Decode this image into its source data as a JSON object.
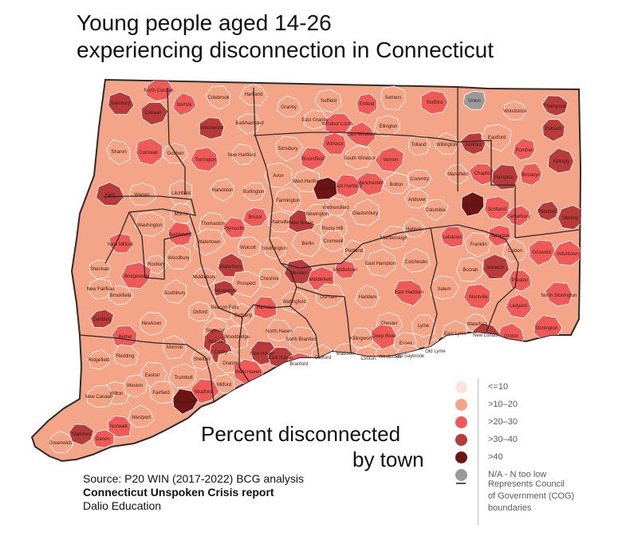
{
  "title": {
    "line1": "Young people aged 14-26",
    "line2": "experiencing disconnection in Connecticut"
  },
  "subtitle": {
    "line1": "Percent disconnected",
    "line2": "by town"
  },
  "source": {
    "line1": "Source: P20 WIN (2017-2022) BCG analysis",
    "line2": "Connecticut Unspoken Crisis report",
    "line3": "Dalio Education"
  },
  "colors": {
    "c1": "#fbe3dd",
    "c2": "#f4a487",
    "c3": "#ef5a58",
    "c4": "#b83a3a",
    "c5": "#6e1417",
    "na": "#9a9a9a",
    "border": "#3b3b3b",
    "town_line": "#ffffff"
  },
  "legend": [
    {
      "label": "<=10",
      "color": "#fbe3dd"
    },
    {
      "label": ">10–20",
      "color": "#f4a487"
    },
    {
      "label": ">20–30",
      "color": "#ef5a58"
    },
    {
      "label": ">30–40",
      "color": "#b83a3a"
    },
    {
      "label": ">40",
      "color": "#6e1417"
    },
    {
      "label": "N/A - N too low",
      "color": "#9a9a9a"
    },
    {
      "label": "Represents Council of Government (COG) boundaries",
      "line1": "Represents Council",
      "line2": "of Government (COG)",
      "line3": "boundaries"
    }
  ],
  "towns": [
    {
      "name": "Salisbury",
      "cat": "c4"
    },
    {
      "name": "North Canaan",
      "cat": "c3"
    },
    {
      "name": "Canaan",
      "cat": "c4"
    },
    {
      "name": "Norfolk",
      "cat": "c3"
    },
    {
      "name": "Colebrook",
      "cat": "c2"
    },
    {
      "name": "Hartland",
      "cat": "c2"
    },
    {
      "name": "Granby",
      "cat": "c2"
    },
    {
      "name": "Suffield",
      "cat": "c2"
    },
    {
      "name": "Enfield",
      "cat": "c3"
    },
    {
      "name": "Somers",
      "cat": "c2"
    },
    {
      "name": "Stafford",
      "cat": "c3"
    },
    {
      "name": "Union",
      "cat": "na"
    },
    {
      "name": "Woodstock",
      "cat": "c2"
    },
    {
      "name": "Thompson",
      "cat": "c4"
    },
    {
      "name": "Putnam",
      "cat": "c4"
    },
    {
      "name": "Sharon",
      "cat": "c2"
    },
    {
      "name": "Cornwall",
      "cat": "c3"
    },
    {
      "name": "Goshen",
      "cat": "c2"
    },
    {
      "name": "Winchester",
      "cat": "c4"
    },
    {
      "name": "Barkhamsted",
      "cat": "c2"
    },
    {
      "name": "East Granby",
      "cat": "c2"
    },
    {
      "name": "Windsor Locks",
      "cat": "c3"
    },
    {
      "name": "East Windsor",
      "cat": "c3"
    },
    {
      "name": "Ellington",
      "cat": "c2"
    },
    {
      "name": "Tolland",
      "cat": "c2"
    },
    {
      "name": "Willington",
      "cat": "c2"
    },
    {
      "name": "Ashford",
      "cat": "c4"
    },
    {
      "name": "Eastford",
      "cat": "c2"
    },
    {
      "name": "Pomfret",
      "cat": "c3"
    },
    {
      "name": "Killingly",
      "cat": "c4"
    },
    {
      "name": "Torrington",
      "cat": "c3"
    },
    {
      "name": "New Hartford",
      "cat": "c2"
    },
    {
      "name": "Simsbury",
      "cat": "c2"
    },
    {
      "name": "Bloomfield",
      "cat": "c3"
    },
    {
      "name": "Windsor",
      "cat": "c3"
    },
    {
      "name": "South Windsor",
      "cat": "c2"
    },
    {
      "name": "Vernon",
      "cat": "c3"
    },
    {
      "name": "Coventry",
      "cat": "c2"
    },
    {
      "name": "Mansfield",
      "cat": "c2"
    },
    {
      "name": "Chaplin",
      "cat": "c3"
    },
    {
      "name": "Hampton",
      "cat": "c4"
    },
    {
      "name": "Brooklyn",
      "cat": "c3"
    },
    {
      "name": "Kent",
      "cat": "c4"
    },
    {
      "name": "Warren",
      "cat": "c2"
    },
    {
      "name": "Litchfield",
      "cat": "c2"
    },
    {
      "name": "Harwinton",
      "cat": "c2"
    },
    {
      "name": "Burlington",
      "cat": "c2"
    },
    {
      "name": "Avon",
      "cat": "c2"
    },
    {
      "name": "West Hartford",
      "cat": "c2"
    },
    {
      "name": "Hartford",
      "cat": "c5"
    },
    {
      "name": "East Hartford",
      "cat": "c3"
    },
    {
      "name": "Manchester",
      "cat": "c3"
    },
    {
      "name": "Bolton",
      "cat": "c2"
    },
    {
      "name": "Andover",
      "cat": "c2"
    },
    {
      "name": "Columbia",
      "cat": "c2"
    },
    {
      "name": "Windham",
      "cat": "c5"
    },
    {
      "name": "Scotland",
      "cat": "c3"
    },
    {
      "name": "Canterbury",
      "cat": "c3"
    },
    {
      "name": "Plainfield",
      "cat": "c4"
    },
    {
      "name": "Sterling",
      "cat": "c4"
    },
    {
      "name": "Washington",
      "cat": "c2"
    },
    {
      "name": "Morris",
      "cat": "c2"
    },
    {
      "name": "Thomaston",
      "cat": "c2"
    },
    {
      "name": "Plymouth",
      "cat": "c3"
    },
    {
      "name": "Bristol",
      "cat": "c3"
    },
    {
      "name": "Farmington",
      "cat": "c2"
    },
    {
      "name": "Plainville",
      "cat": "c2"
    },
    {
      "name": "New Britain",
      "cat": "c4"
    },
    {
      "name": "Newington",
      "cat": "c2"
    },
    {
      "name": "Wethersfield",
      "cat": "c2"
    },
    {
      "name": "Rocky Hill",
      "cat": "c2"
    },
    {
      "name": "Glastonbury",
      "cat": "c2"
    },
    {
      "name": "Hebron",
      "cat": "c2"
    },
    {
      "name": "Lebanon",
      "cat": "c3"
    },
    {
      "name": "Franklin",
      "cat": "c2"
    },
    {
      "name": "Sprague",
      "cat": "c3"
    },
    {
      "name": "Lisbon",
      "cat": "c2"
    },
    {
      "name": "Griswold",
      "cat": "c3"
    },
    {
      "name": "Voluntown",
      "cat": "c3"
    },
    {
      "name": "New Milford",
      "cat": "c3"
    },
    {
      "name": "Bethlehem",
      "cat": "c3"
    },
    {
      "name": "Watertown",
      "cat": "c2"
    },
    {
      "name": "Wolcott",
      "cat": "c2"
    },
    {
      "name": "Southington",
      "cat": "c2"
    },
    {
      "name": "Berlin",
      "cat": "c2"
    },
    {
      "name": "Cromwell",
      "cat": "c2"
    },
    {
      "name": "Portland",
      "cat": "c2"
    },
    {
      "name": "East Hampton",
      "cat": "c2"
    },
    {
      "name": "Marlborough",
      "cat": "c2"
    },
    {
      "name": "Colchester",
      "cat": "c2"
    },
    {
      "name": "Bozrah",
      "cat": "c2"
    },
    {
      "name": "Norwich",
      "cat": "c4"
    },
    {
      "name": "Preston",
      "cat": "c3"
    },
    {
      "name": "Sherman",
      "cat": "c2"
    },
    {
      "name": "Roxbury",
      "cat": "c2"
    },
    {
      "name": "Woodbury",
      "cat": "c2"
    },
    {
      "name": "Waterbury",
      "cat": "c4"
    },
    {
      "name": "Middlebury",
      "cat": "c2"
    },
    {
      "name": "Cheshire",
      "cat": "c2"
    },
    {
      "name": "Meriden",
      "cat": "c4"
    },
    {
      "name": "Middlefield",
      "cat": "c3"
    },
    {
      "name": "Middletown",
      "cat": "c3"
    },
    {
      "name": "New Fairfield",
      "cat": "c2"
    },
    {
      "name": "Brookfield",
      "cat": "c2"
    },
    {
      "name": "Bridgewater",
      "cat": "c3"
    },
    {
      "name": "Southbury",
      "cat": "c2"
    },
    {
      "name": "Naugatuck",
      "cat": "c4"
    },
    {
      "name": "Prospect",
      "cat": "c2"
    },
    {
      "name": "Wallingford",
      "cat": "c2"
    },
    {
      "name": "Durham",
      "cat": "c2"
    },
    {
      "name": "Haddam",
      "cat": "c2"
    },
    {
      "name": "East Haddam",
      "cat": "c3"
    },
    {
      "name": "Salem",
      "cat": "c2"
    },
    {
      "name": "Montville",
      "cat": "c3"
    },
    {
      "name": "Ledyard",
      "cat": "c3"
    },
    {
      "name": "North Stonington",
      "cat": "c3"
    },
    {
      "name": "Danbury",
      "cat": "c4"
    },
    {
      "name": "Newtown",
      "cat": "c2"
    },
    {
      "name": "Oxford",
      "cat": "c2"
    },
    {
      "name": "Beacon Falls",
      "cat": "c2"
    },
    {
      "name": "Bethany",
      "cat": "c2"
    },
    {
      "name": "Hamden",
      "cat": "c3"
    },
    {
      "name": "North Haven",
      "cat": "c2"
    },
    {
      "name": "North Branford",
      "cat": "c2"
    },
    {
      "name": "Killingworth",
      "cat": "c2"
    },
    {
      "name": "Chester",
      "cat": "c2"
    },
    {
      "name": "Lyme",
      "cat": "c2"
    },
    {
      "name": "East Lyme",
      "cat": "c2"
    },
    {
      "name": "Waterford",
      "cat": "c2"
    },
    {
      "name": "New London",
      "cat": "c4"
    },
    {
      "name": "Groton",
      "cat": "c3"
    },
    {
      "name": "Stonington",
      "cat": "c3"
    },
    {
      "name": "Bethel",
      "cat": "c3"
    },
    {
      "name": "Redding",
      "cat": "c2"
    },
    {
      "name": "Monroe",
      "cat": "c2"
    },
    {
      "name": "Seymour",
      "cat": "c2"
    },
    {
      "name": "Ansonia",
      "cat": "c4"
    },
    {
      "name": "Derby",
      "cat": "c4"
    },
    {
      "name": "Woodbridge",
      "cat": "c2"
    },
    {
      "name": "New Haven",
      "cat": "c4"
    },
    {
      "name": "East Haven",
      "cat": "c4"
    },
    {
      "name": "Branford",
      "cat": "c3"
    },
    {
      "name": "Guilford",
      "cat": "c2"
    },
    {
      "name": "Madison",
      "cat": "c2"
    },
    {
      "name": "Clinton",
      "cat": "c2"
    },
    {
      "name": "Westbrook",
      "cat": "c2"
    },
    {
      "name": "Deep River",
      "cat": "c3"
    },
    {
      "name": "Essex",
      "cat": "c2"
    },
    {
      "name": "Old Saybrook",
      "cat": "c2"
    },
    {
      "name": "Old Lyme",
      "cat": "c2"
    },
    {
      "name": "Ridgefield",
      "cat": "c2"
    },
    {
      "name": "Easton",
      "cat": "c2"
    },
    {
      "name": "Trumbull",
      "cat": "c2"
    },
    {
      "name": "Shelton",
      "cat": "c2"
    },
    {
      "name": "Orange",
      "cat": "c2"
    },
    {
      "name": "West Haven",
      "cat": "c3"
    },
    {
      "name": "Milford",
      "cat": "c2"
    },
    {
      "name": "Stratford",
      "cat": "c3"
    },
    {
      "name": "Wilton",
      "cat": "c2"
    },
    {
      "name": "Weston",
      "cat": "c2"
    },
    {
      "name": "Fairfield",
      "cat": "c2"
    },
    {
      "name": "Bridgeport",
      "cat": "c5"
    },
    {
      "name": "New Canaan",
      "cat": "c2"
    },
    {
      "name": "Westport",
      "cat": "c2"
    },
    {
      "name": "Norwalk",
      "cat": "c3"
    },
    {
      "name": "Stamford",
      "cat": "c4"
    },
    {
      "name": "Darien",
      "cat": "c3"
    },
    {
      "name": "Greenwich",
      "cat": "c2"
    }
  ]
}
